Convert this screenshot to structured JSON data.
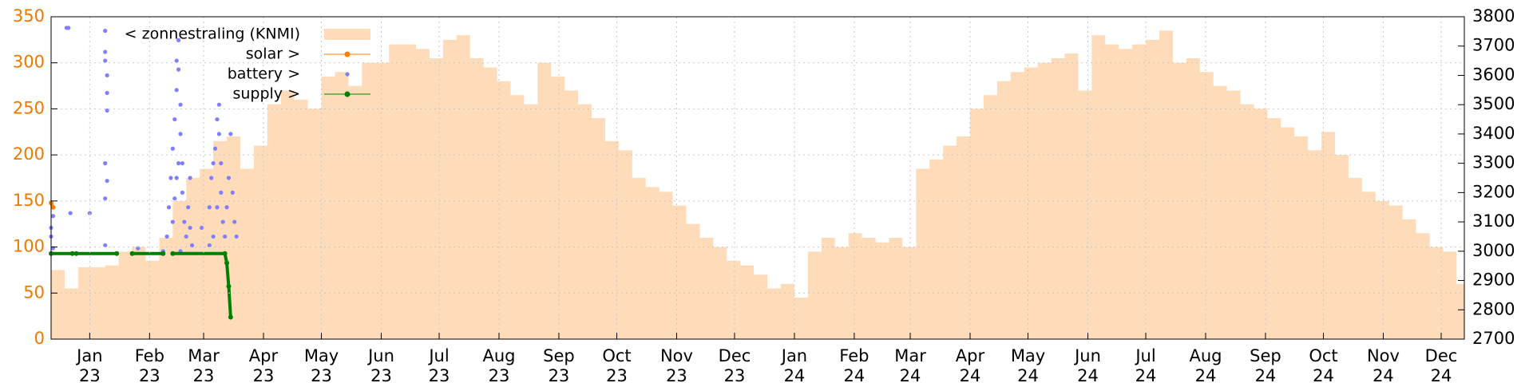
{
  "chart_data": {
    "type": "combo",
    "grid": true,
    "legend": "top-left",
    "xlim": [
      -20,
      712
    ],
    "ylim": [
      0,
      350
    ],
    "y2lim": [
      2700,
      3800
    ],
    "yticks": [
      0,
      50,
      100,
      150,
      200,
      250,
      300,
      350
    ],
    "y2ticks": [
      2700,
      2800,
      2900,
      3000,
      3100,
      3200,
      3300,
      3400,
      3500,
      3600,
      3700,
      3800
    ],
    "xticks": [
      {
        "value": 0,
        "label": "Jan 23"
      },
      {
        "value": 31,
        "label": "Feb 23"
      },
      {
        "value": 59,
        "label": "Mar 23"
      },
      {
        "value": 90,
        "label": "Apr 23"
      },
      {
        "value": 120,
        "label": "May 23"
      },
      {
        "value": 151,
        "label": "Jun 23"
      },
      {
        "value": 181,
        "label": "Jul 23"
      },
      {
        "value": 212,
        "label": "Aug 23"
      },
      {
        "value": 243,
        "label": "Sep 23"
      },
      {
        "value": 273,
        "label": "Oct 23"
      },
      {
        "value": 304,
        "label": "Nov 23"
      },
      {
        "value": 334,
        "label": "Dec 23"
      },
      {
        "value": 365,
        "label": "Jan 24"
      },
      {
        "value": 396,
        "label": "Feb 24"
      },
      {
        "value": 425,
        "label": "Mar 24"
      },
      {
        "value": 456,
        "label": "Apr 24"
      },
      {
        "value": 486,
        "label": "May 24"
      },
      {
        "value": 517,
        "label": "Jun 24"
      },
      {
        "value": 547,
        "label": "Jul 24"
      },
      {
        "value": 578,
        "label": "Aug 24"
      },
      {
        "value": 609,
        "label": "Sep 24"
      },
      {
        "value": 639,
        "label": "Oct 24"
      },
      {
        "value": 670,
        "label": "Nov 24"
      },
      {
        "value": 700,
        "label": "Dec 24"
      }
    ],
    "series": [
      {
        "name": "< zonnestraling (KNMI)",
        "type": "area",
        "color": "#ffdcb9",
        "x": [
          -20,
          -13,
          -6,
          1,
          8,
          15,
          22,
          29,
          36,
          43,
          50,
          57,
          64,
          71,
          78,
          85,
          92,
          99,
          106,
          113,
          120,
          127,
          134,
          141,
          148,
          155,
          162,
          169,
          176,
          183,
          190,
          197,
          204,
          211,
          218,
          225,
          232,
          239,
          246,
          253,
          260,
          267,
          274,
          281,
          288,
          295,
          302,
          309,
          316,
          323,
          330,
          337,
          344,
          351,
          358,
          365,
          372,
          379,
          386,
          393,
          400,
          407,
          414,
          421,
          428,
          435,
          442,
          449,
          456,
          463,
          470,
          477,
          484,
          491,
          498,
          505,
          512,
          519,
          526,
          533,
          540,
          547,
          554,
          561,
          568,
          575,
          582,
          589,
          596,
          603,
          610,
          617,
          624,
          631,
          638,
          645,
          652,
          659,
          666,
          673,
          680,
          687,
          694,
          701,
          708
        ],
        "values": [
          75,
          55,
          78,
          78,
          80,
          95,
          100,
          85,
          110,
          150,
          175,
          185,
          215,
          220,
          185,
          210,
          255,
          270,
          260,
          250,
          285,
          290,
          275,
          300,
          300,
          320,
          320,
          315,
          305,
          325,
          330,
          305,
          295,
          280,
          265,
          255,
          300,
          285,
          270,
          255,
          240,
          215,
          205,
          175,
          165,
          160,
          145,
          125,
          110,
          100,
          85,
          80,
          70,
          55,
          60,
          45,
          95,
          110,
          100,
          115,
          110,
          105,
          110,
          100,
          185,
          195,
          210,
          220,
          250,
          265,
          280,
          290,
          295,
          300,
          305,
          310,
          270,
          330,
          320,
          315,
          320,
          325,
          335,
          300,
          305,
          290,
          275,
          270,
          255,
          250,
          240,
          230,
          220,
          205,
          225,
          200,
          175,
          160,
          150,
          145,
          130,
          115,
          100,
          95,
          60
        ]
      },
      {
        "name": "solar >",
        "type": "line",
        "axis": "y2",
        "color": "#ff7f00",
        "x": [
          -20,
          -19
        ],
        "values": [
          3165,
          3150
        ]
      },
      {
        "name": "battery >",
        "type": "scatter",
        "axis": "y2",
        "color": "#7f7fff",
        "x": [
          -20,
          -20,
          -19,
          -19,
          -12,
          -11,
          -10,
          0,
          8,
          8,
          8,
          9,
          9,
          9,
          8,
          8,
          8,
          9,
          25,
          38,
          40,
          41,
          42,
          43,
          44,
          45,
          45,
          46,
          46,
          47,
          47,
          48,
          48,
          49,
          50,
          51,
          52,
          52,
          53,
          44,
          43,
          46,
          47,
          45,
          58,
          62,
          63,
          64,
          65,
          66,
          67,
          67,
          68,
          68,
          69,
          70,
          71,
          72,
          73,
          74,
          75,
          76,
          66,
          64,
          62
        ],
        "values": [
          3050,
          3080,
          3120,
          3010,
          3762,
          3762,
          3130,
          3130,
          3752,
          3680,
          3650,
          3600,
          3540,
          3480,
          3300,
          3180,
          3020,
          3240,
          3010,
          3000,
          3050,
          3150,
          3250,
          3350,
          3450,
          3550,
          3650,
          3720,
          3620,
          3500,
          3400,
          3300,
          3200,
          3100,
          3050,
          3150,
          3250,
          3080,
          3020,
          3180,
          3100,
          3300,
          3000,
          3250,
          3080,
          3150,
          3250,
          3300,
          3350,
          3450,
          3500,
          3400,
          3300,
          3200,
          3100,
          3050,
          3150,
          3250,
          3400,
          3200,
          3100,
          3050,
          3150,
          3050,
          3020
        ]
      },
      {
        "name": "supply >",
        "type": "line",
        "axis": "y2",
        "color": "#008000",
        "x": [
          -20,
          -9,
          -8,
          -7,
          14,
          15,
          22,
          38,
          40,
          43,
          70,
          71,
          72,
          73
        ],
        "values": [
          2992,
          2992,
          null,
          2992,
          2992,
          null,
          2992,
          2992,
          null,
          2992,
          2992,
          2960,
          2880,
          2775
        ]
      }
    ]
  }
}
